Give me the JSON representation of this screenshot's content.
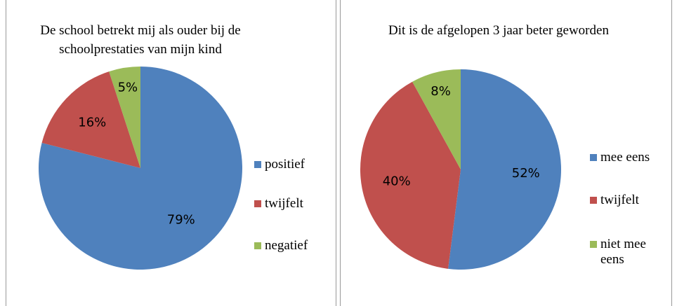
{
  "chart_data": [
    {
      "type": "pie",
      "title": "De school betrekt mij als ouder bij de schoolprestaties van mijn kind",
      "categories": [
        "positief",
        "twijfelt",
        "negatief"
      ],
      "values": [
        79,
        16,
        5
      ],
      "value_labels": [
        "79%",
        "16%",
        "5%"
      ],
      "colors": [
        "#4f81bd",
        "#c0504d",
        "#9bbb59"
      ],
      "legend": "right"
    },
    {
      "type": "pie",
      "title": "Dit is de afgelopen 3 jaar beter geworden",
      "categories": [
        "mee eens",
        "twijfelt",
        "niet mee eens"
      ],
      "values": [
        52,
        40,
        8
      ],
      "value_labels": [
        "52%",
        "40%",
        "8%"
      ],
      "colors": [
        "#4f81bd",
        "#c0504d",
        "#9bbb59"
      ],
      "legend": "right"
    }
  ]
}
